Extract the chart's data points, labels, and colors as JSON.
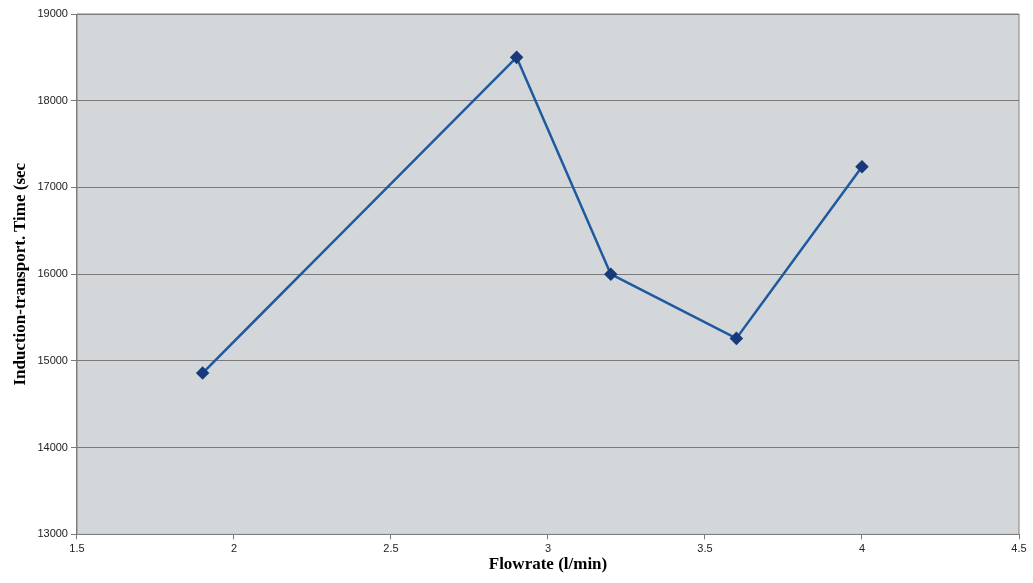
{
  "chart_data": {
    "type": "line",
    "xlabel": "Flowrate (l/min)",
    "ylabel": "Induction-transport. Time (sec",
    "series": [
      {
        "color": "#1f5aa0",
        "x": [
          1.9,
          2.9,
          3.2,
          3.6,
          4.0
        ],
        "values": [
          14860,
          18500,
          16000,
          15260,
          17240
        ]
      }
    ],
    "xlim": [
      1.5,
      4.5
    ],
    "xticks": [
      1.5,
      2,
      2.5,
      3,
      3.5,
      4,
      4.5
    ],
    "ylim": [
      13000,
      19000
    ],
    "yticks": [
      13000,
      14000,
      15000,
      16000,
      17000,
      18000,
      19000
    ],
    "grid": "y",
    "legend": false,
    "marker": "diamond",
    "line_style": "solid"
  }
}
